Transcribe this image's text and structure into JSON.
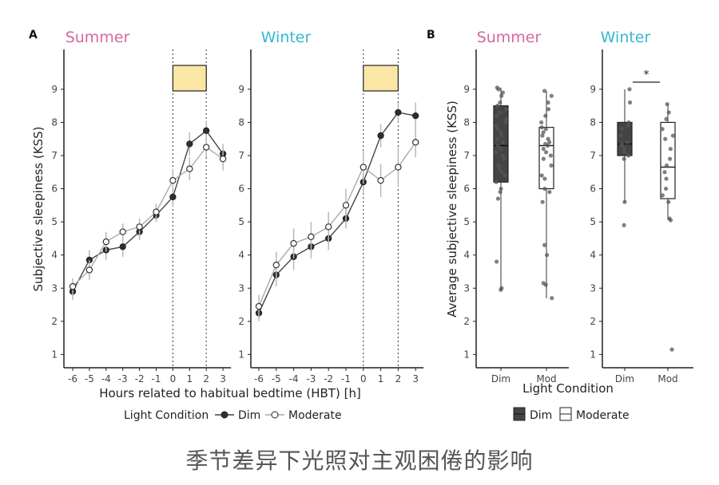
{
  "colors": {
    "summer": "#d6689f",
    "winter": "#36b6d6",
    "dim": "#2f2f2f",
    "moderate": "#ffffff",
    "axis": "#222222",
    "highlight": "#fbe6a6",
    "errbar": "#b8b8b8"
  },
  "panel_a_label": "A",
  "panel_b_label": "B",
  "caption": "季节差异下光照对主观困倦的影响",
  "chart_data": [
    {
      "type": "line",
      "panel": "A",
      "facets": [
        "Summer",
        "Winter"
      ],
      "x": [
        -6,
        -5,
        -4,
        -3,
        -2,
        -1,
        0,
        1,
        2,
        3
      ],
      "x_tick_labels": [
        "-6",
        "-5",
        "-4",
        "-3",
        "-2",
        "-1",
        "0",
        "1",
        "2",
        "3"
      ],
      "xlabel": "Hours related to habitual bedtime (HBT) [h]",
      "ylabel": "Subjective sleepiness (KSS)",
      "ylim": [
        0.6,
        10.2
      ],
      "y_ticks": [
        1,
        2,
        3,
        4,
        5,
        6,
        7,
        8,
        9
      ],
      "y_tick_labels": [
        "1",
        "2",
        "3",
        "4",
        "5",
        "6",
        "7",
        "8",
        "9"
      ],
      "vlines": [
        0,
        2
      ],
      "highlight_x": [
        0,
        2
      ],
      "legend_title": "Light Condition",
      "legend_entries": [
        "Dim",
        "Moderate"
      ],
      "series": [
        {
          "facet": "Summer",
          "name": "Dim",
          "values": [
            2.9,
            3.85,
            4.15,
            4.25,
            4.7,
            5.2,
            5.75,
            7.35,
            7.75,
            7.05
          ],
          "err": [
            0.25,
            0.3,
            0.3,
            0.3,
            0.25,
            0.2,
            0.3,
            0.35,
            0.3,
            0.3
          ]
        },
        {
          "facet": "Summer",
          "name": "Moderate",
          "values": [
            3.05,
            3.55,
            4.4,
            4.7,
            4.85,
            5.3,
            6.25,
            6.6,
            7.25,
            6.9
          ],
          "err": [
            0.25,
            0.3,
            0.3,
            0.25,
            0.25,
            0.25,
            0.35,
            0.35,
            0.3,
            0.35
          ]
        },
        {
          "facet": "Winter",
          "name": "Dim",
          "values": [
            2.25,
            3.4,
            3.95,
            4.25,
            4.5,
            5.1,
            6.2,
            7.6,
            8.3,
            8.2
          ],
          "err": [
            0.25,
            0.35,
            0.4,
            0.35,
            0.35,
            0.3,
            0.35,
            0.35,
            0.3,
            0.4
          ]
        },
        {
          "facet": "Winter",
          "name": "Moderate",
          "values": [
            2.45,
            3.7,
            4.35,
            4.55,
            4.85,
            5.5,
            6.65,
            6.25,
            6.65,
            7.4
          ],
          "err": [
            0.35,
            0.4,
            0.45,
            0.45,
            0.45,
            0.5,
            0.5,
            0.5,
            0.6,
            0.45
          ]
        }
      ]
    },
    {
      "type": "box",
      "panel": "B",
      "facets": [
        "Summer",
        "Winter"
      ],
      "categories": [
        "Dim",
        "Mod"
      ],
      "xlabel": "Light Condition",
      "ylabel": "Average subjective sleepiness (KSS)",
      "ylim": [
        0.6,
        10.2
      ],
      "y_ticks": [
        1,
        2,
        3,
        4,
        5,
        6,
        7,
        8,
        9
      ],
      "y_tick_labels": [
        "1",
        "2",
        "3",
        "4",
        "5",
        "6",
        "7",
        "8",
        "9"
      ],
      "legend_entries": [
        "Dim",
        "Moderate"
      ],
      "significance": {
        "facet": "Winter",
        "label": "*",
        "between": [
          "Dim",
          "Mod"
        ]
      },
      "boxes": [
        {
          "facet": "Summer",
          "category": "Dim",
          "fill": "dark",
          "min": 2.95,
          "q1": 6.2,
          "median": 7.3,
          "q3": 8.5,
          "max": 9.05,
          "points": [
            2.95,
            3.0,
            3.8,
            5.7,
            5.9,
            6.0,
            6.2,
            6.4,
            6.5,
            6.6,
            6.7,
            6.9,
            7.0,
            7.1,
            7.2,
            7.3,
            7.4,
            7.5,
            7.6,
            7.7,
            7.8,
            7.9,
            8.0,
            8.1,
            8.2,
            8.3,
            8.4,
            8.5,
            8.6,
            8.8,
            8.9,
            9.0,
            9.05
          ]
        },
        {
          "facet": "Summer",
          "category": "Mod",
          "fill": "light",
          "min": 2.7,
          "q1": 6.0,
          "median": 7.3,
          "q3": 7.85,
          "max": 8.95,
          "points": [
            2.7,
            3.1,
            3.15,
            4.0,
            4.3,
            5.6,
            5.9,
            6.0,
            6.3,
            6.4,
            6.7,
            6.9,
            7.0,
            7.1,
            7.2,
            7.3,
            7.35,
            7.4,
            7.5,
            7.6,
            7.7,
            7.8,
            7.85,
            8.0,
            8.2,
            8.4,
            8.6,
            8.8,
            8.95
          ]
        },
        {
          "facet": "Winter",
          "category": "Dim",
          "fill": "dark",
          "min": 5.6,
          "q1": 7.0,
          "median": 7.35,
          "q3": 8.0,
          "max": 9.0,
          "points": [
            4.9,
            5.6,
            6.9,
            7.0,
            7.1,
            7.2,
            7.3,
            7.35,
            7.4,
            7.6,
            7.8,
            7.9,
            8.0,
            8.6,
            9.0
          ]
        },
        {
          "facet": "Winter",
          "category": "Mod",
          "fill": "light",
          "min": 5.05,
          "q1": 5.7,
          "median": 6.65,
          "q3": 8.0,
          "max": 8.55,
          "points": [
            1.15,
            5.05,
            5.1,
            5.6,
            5.8,
            6.0,
            6.3,
            6.5,
            6.7,
            6.9,
            7.2,
            7.5,
            7.6,
            7.8,
            8.1,
            8.3,
            8.55
          ]
        }
      ]
    }
  ]
}
